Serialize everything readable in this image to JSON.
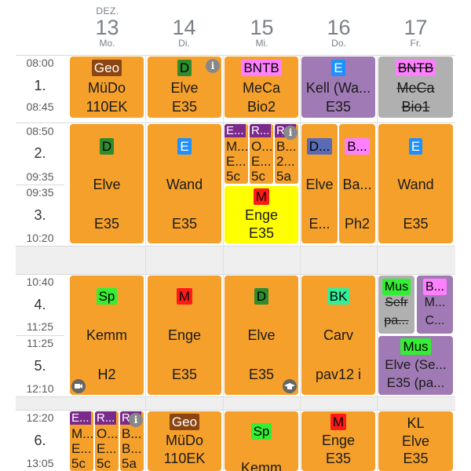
{
  "month": "DEZ.",
  "days": [
    {
      "num": "13",
      "dow": "Mo."
    },
    {
      "num": "14",
      "dow": "Di."
    },
    {
      "num": "15",
      "dow": "Mi."
    },
    {
      "num": "16",
      "dow": "Do."
    },
    {
      "num": "17",
      "dow": "Fr."
    }
  ],
  "periods": [
    {
      "label": "1.",
      "start": "08:00",
      "end": "08:45"
    },
    {
      "label": "2.",
      "start": "08:50",
      "end": "09:35"
    },
    {
      "label": "3.",
      "start": "09:35",
      "end": "10:20"
    },
    {
      "label": "4.",
      "start": "10:40",
      "end": "11:25"
    },
    {
      "label": "5.",
      "start": "11:25",
      "end": "12:10"
    },
    {
      "label": "6.",
      "start": "12:20",
      "end": "13:05"
    }
  ],
  "icons": {
    "info": "i",
    "camera": "camera-icon",
    "grad": "graduation-cap-icon"
  },
  "colors": {
    "orange": "#f5a02a",
    "purple": "#a07ab5",
    "gray": "#b0b0b0",
    "yellow": "#ffff00",
    "geo": "#8b4513",
    "green": "#2e8b2e",
    "blue": "#1e90ff",
    "pink": "#ff80ff",
    "red": "#ff1a1a",
    "ltgreen": "#33ee33",
    "darkpurple": "#7a2a8a",
    "navy": "#5a6ab5"
  },
  "p1": {
    "mo": {
      "badge": "Geo",
      "teacher": "MüDo",
      "room": "110EK"
    },
    "di": {
      "badge": "D",
      "teacher": "Elve",
      "room": "E35"
    },
    "mi": {
      "badge": "BNTB",
      "teacher": "MeCa",
      "room": "Bio2"
    },
    "do": {
      "badge": "E",
      "teacher": "Kell (Wa...",
      "room": "E35"
    },
    "fr": {
      "badge": "BNTB",
      "teacher": "MeCa",
      "room": "Bio1"
    }
  },
  "p23": {
    "mo": {
      "badge": "D",
      "teacher": "Elve",
      "room": "E35"
    },
    "di": {
      "badge": "E",
      "teacher": "Wand",
      "room": "E35"
    },
    "mi_minis": [
      {
        "b": "E...",
        "l1": "M...",
        "l2": "E...",
        "l3": "5c"
      },
      {
        "b": "R...",
        "l1": "O...",
        "l2": "E...",
        "l3": "5c"
      },
      {
        "b": "R...",
        "l1": "B...",
        "l2": "2...",
        "l3": "5a"
      }
    ],
    "mi3": {
      "badge": "M",
      "teacher": "Enge",
      "room": "E35"
    },
    "do_a": {
      "badge": "D...",
      "teacher": "Elve",
      "room": "E..."
    },
    "do_b": {
      "badge": "B...",
      "teacher": "Ba...",
      "room": "Ph2"
    },
    "fr": {
      "badge": "E",
      "teacher": "Wand",
      "room": "E35"
    }
  },
  "p45": {
    "mo": {
      "badge": "Sp",
      "teacher": "Kemm",
      "room": "H2"
    },
    "di": {
      "badge": "M",
      "teacher": "Enge",
      "room": "E35"
    },
    "mi": {
      "badge": "D",
      "teacher": "Elve",
      "room": "E35"
    },
    "do": {
      "badge": "BK",
      "teacher": "Carv",
      "room": "pav12 i"
    },
    "fr4a": {
      "badge": "Mus",
      "teacher": "Sefr",
      "room": "pa..."
    },
    "fr4b": {
      "badge": "B...",
      "teacher": "M...",
      "room": "C..."
    },
    "fr5": {
      "badge": "Mus",
      "teacher": "Elve (Se...",
      "room": "E35 (pa..."
    }
  },
  "p6": {
    "mo_minis": [
      {
        "b": "E...",
        "l1": "M...",
        "l2": "E...",
        "l3": "5c"
      },
      {
        "b": "R...",
        "l1": "O...",
        "l2": "E...",
        "l3": "5c"
      },
      {
        "b": "R...",
        "l1": "B...",
        "l2": "B...",
        "l3": "5a"
      }
    ],
    "di": {
      "badge": "Geo",
      "teacher": "MüDo",
      "room": "110EK"
    },
    "mi": {
      "badge": "Sp",
      "teacher": "Kemm"
    },
    "do": {
      "badge": "M",
      "teacher": "Enge",
      "room": "E35"
    },
    "fr": {
      "l1": "KL",
      "teacher": "Elve",
      "room": "E35"
    }
  }
}
